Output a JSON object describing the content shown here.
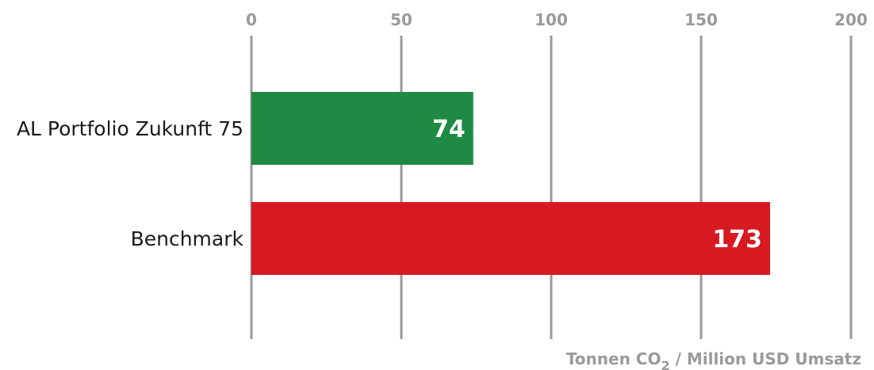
{
  "chart_data": {
    "type": "bar",
    "orientation": "horizontal",
    "categories": [
      "AL Portfolio Zukunft 75",
      "Benchmark"
    ],
    "values": [
      74,
      173
    ],
    "value_labels": [
      "74",
      "173"
    ],
    "bar_colors": [
      "#1f8a43",
      "#d71921"
    ],
    "xlim": [
      0,
      200
    ],
    "x_ticks": [
      0,
      50,
      100,
      150,
      200
    ],
    "x_tick_labels": [
      "0",
      "50",
      "100",
      "150",
      "200"
    ],
    "x_axis_position": "top",
    "grid": true,
    "xlabel": {
      "main": "Tonnen CO",
      "subscript": "2",
      "rest": " / Million USD Umsatz"
    },
    "colors": {
      "gridline": "#9a9a9a",
      "tick_text": "#9a9a9a",
      "category_text": "#1a1a1a",
      "value_text": "#ffffff"
    }
  }
}
